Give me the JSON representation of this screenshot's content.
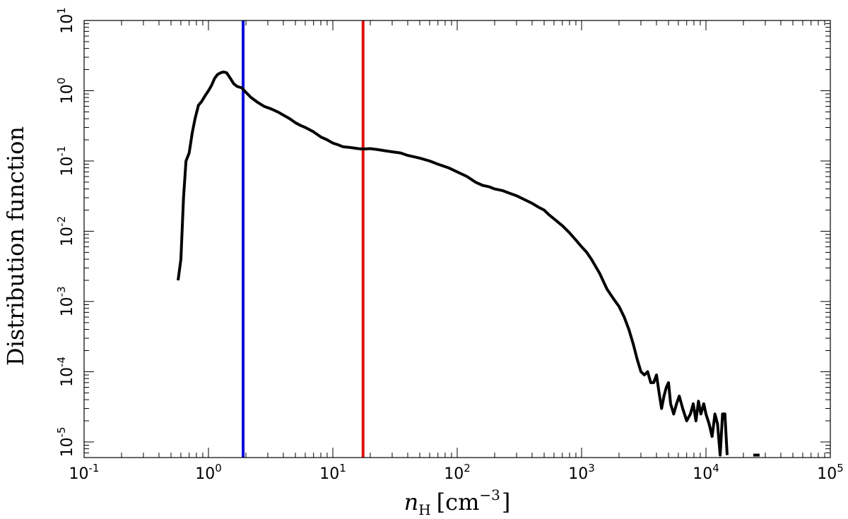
{
  "chart_data": {
    "type": "line",
    "title": "",
    "xlabel": {
      "var": "n",
      "sub": "H",
      "unit_open": "[cm",
      "unit_exp": "−3",
      "unit_close": "]"
    },
    "ylabel": "Distribution function",
    "xscale": "log",
    "yscale": "log",
    "xlim": [
      0.1,
      100000
    ],
    "ylim": [
      6e-06,
      10
    ],
    "x_ticks": [
      {
        "value": 0.1,
        "base": "10",
        "exp": "-1"
      },
      {
        "value": 1,
        "base": "10",
        "exp": "0"
      },
      {
        "value": 10,
        "base": "10",
        "exp": "1"
      },
      {
        "value": 100,
        "base": "10",
        "exp": "2"
      },
      {
        "value": 1000,
        "base": "10",
        "exp": "3"
      },
      {
        "value": 10000,
        "base": "10",
        "exp": "4"
      },
      {
        "value": 100000,
        "base": "10",
        "exp": "5"
      }
    ],
    "y_ticks": [
      {
        "value": 1e-05,
        "base": "10",
        "exp": "-5"
      },
      {
        "value": 0.0001,
        "base": "10",
        "exp": "-4"
      },
      {
        "value": 0.001,
        "base": "10",
        "exp": "-3"
      },
      {
        "value": 0.01,
        "base": "10",
        "exp": "-2"
      },
      {
        "value": 0.1,
        "base": "10",
        "exp": "-1"
      },
      {
        "value": 1,
        "base": "10",
        "exp": "0"
      },
      {
        "value": 10,
        "base": "10",
        "exp": "1"
      }
    ],
    "grid": false,
    "series": [
      {
        "color": "#000000",
        "x": [
          0.57,
          0.6,
          0.63,
          0.66,
          0.7,
          0.74,
          0.78,
          0.83,
          0.88,
          0.94,
          1.0,
          1.06,
          1.12,
          1.18,
          1.25,
          1.32,
          1.4,
          1.5,
          1.6,
          1.7,
          1.85,
          2.0,
          2.2,
          2.5,
          2.8,
          3.2,
          3.6,
          4.0,
          4.5,
          5.0,
          5.5,
          6.0,
          7.0,
          8.0,
          9.0,
          10.0,
          11.0,
          12.0,
          14.0,
          16.0,
          17.5,
          20.0,
          23.0,
          26.0,
          30.0,
          35.0,
          40.0,
          50.0,
          60.0,
          70.0,
          85.0,
          100.0,
          120.0,
          140.0,
          160.0,
          180.0,
          200.0,
          230.0,
          260.0,
          300.0,
          350.0,
          400.0,
          450.0,
          500.0,
          550.0,
          600.0,
          700.0,
          800.0,
          900.0,
          1000.0,
          1100.0,
          1200.0,
          1400.0,
          1600.0,
          1800.0,
          2000.0,
          2200.0,
          2400.0,
          2600.0,
          2800.0,
          3000.0,
          3200.0,
          3400.0,
          3600.0,
          3800.0,
          4000.0,
          4200.0,
          4400.0,
          4600.0,
          4800.0,
          5000.0,
          5200.0,
          5500.0,
          5800.0,
          6100.0,
          6500.0,
          7000.0,
          7500.0,
          7900.0,
          8300.0,
          8700.0,
          9100.0,
          9600.0,
          10000.0,
          10600.0,
          11200.0,
          11800.0,
          12400.0,
          13000.0,
          13600.0,
          14200.0,
          14800.0
        ],
        "y": [
          0.002,
          0.004,
          0.03,
          0.1,
          0.13,
          0.25,
          0.4,
          0.62,
          0.7,
          0.85,
          1.0,
          1.2,
          1.5,
          1.7,
          1.8,
          1.85,
          1.8,
          1.5,
          1.25,
          1.15,
          1.1,
          0.95,
          0.8,
          0.68,
          0.6,
          0.55,
          0.5,
          0.45,
          0.4,
          0.35,
          0.32,
          0.3,
          0.26,
          0.22,
          0.2,
          0.18,
          0.17,
          0.16,
          0.155,
          0.15,
          0.148,
          0.15,
          0.145,
          0.14,
          0.135,
          0.13,
          0.12,
          0.11,
          0.1,
          0.09,
          0.08,
          0.07,
          0.06,
          0.05,
          0.045,
          0.043,
          0.04,
          0.038,
          0.035,
          0.032,
          0.028,
          0.025,
          0.022,
          0.02,
          0.017,
          0.015,
          0.012,
          0.0095,
          0.0075,
          0.006,
          0.005,
          0.004,
          0.0025,
          0.0015,
          0.0011,
          0.00085,
          0.0006,
          0.0004,
          0.00025,
          0.00015,
          0.0001,
          9e-05,
          0.0001,
          7e-05,
          7e-05,
          9e-05,
          5e-05,
          3e-05,
          4.5e-05,
          6e-05,
          7e-05,
          3.5e-05,
          2.5e-05,
          3.5e-05,
          4.5e-05,
          3e-05,
          2e-05,
          2.5e-05,
          3.5e-05,
          2e-05,
          3.8e-05,
          2.5e-05,
          3.5e-05,
          2.5e-05,
          1.8e-05,
          1.2e-05,
          2.5e-05,
          1.8e-05,
          6.5e-06,
          2.5e-05,
          2.5e-05,
          6.5e-06
        ]
      },
      {
        "color": "#000000",
        "x": [
          24000,
          27000
        ],
        "y": [
          6.5e-06,
          6.5e-06
        ]
      }
    ],
    "vlines": [
      {
        "x": 1.9,
        "color": "#0a0adc"
      },
      {
        "x": 17.5,
        "color": "#e01010"
      }
    ]
  }
}
